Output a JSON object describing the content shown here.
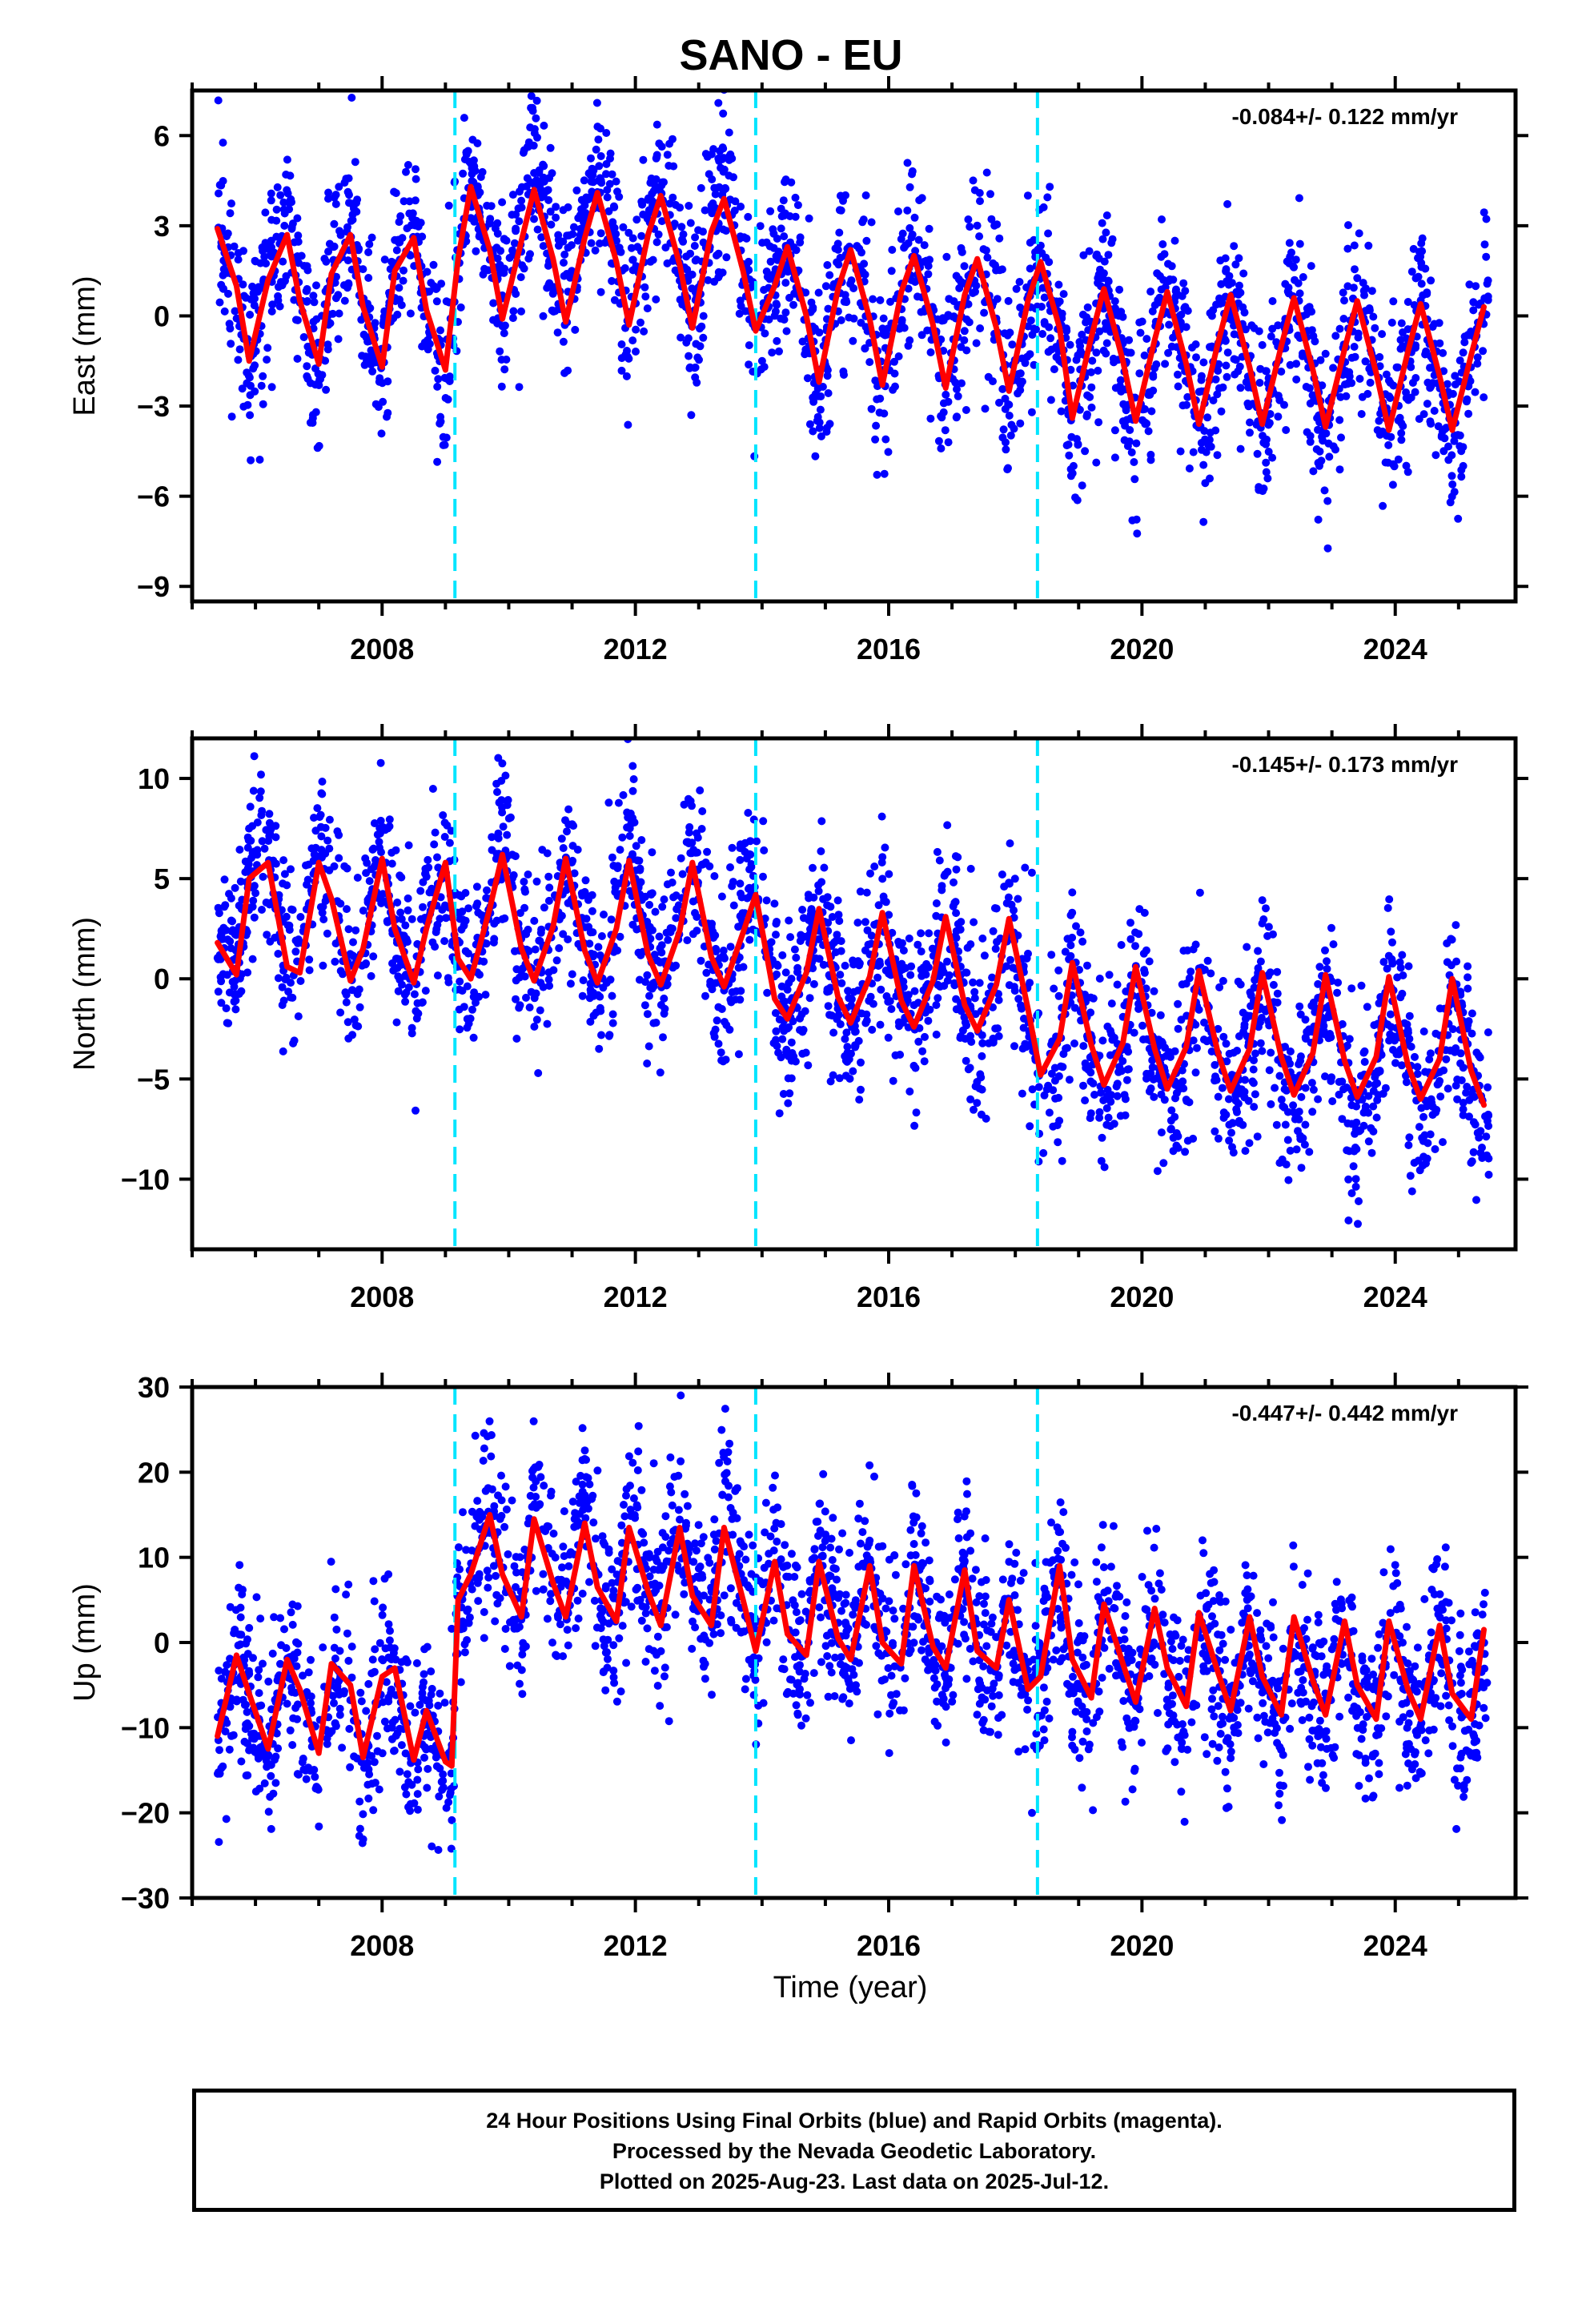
{
  "title": "SANO - EU",
  "xlabel": "Time (year)",
  "footer": {
    "line1": "24 Hour Positions Using Final Orbits (blue) and Rapid Orbits (magenta).",
    "line2": "Processed by the Nevada Geodetic Laboratory.",
    "line3": "Plotted on 2025-Aug-23. Last data on 2025-Jul-12."
  },
  "colors": {
    "data": "#0000ff",
    "model": "#ff0000",
    "offsets": "#00e5ff",
    "frame": "#000000"
  },
  "chart_data": [
    {
      "type": "scatter",
      "component": "East",
      "ylabel": "East (mm)",
      "rate_label": "-0.084+/- 0.122 mm/yr",
      "xlim": [
        2005.0,
        2025.9
      ],
      "ylim": [
        -9.5,
        7.5
      ],
      "yticks": [
        -9,
        -6,
        -3,
        0,
        3,
        6
      ],
      "ytick_labels": [
        "−9",
        "−6",
        "−3",
        "0",
        "3",
        "6"
      ],
      "xticks": [
        2008,
        2012,
        2016,
        2020,
        2024
      ],
      "xtick_labels": [
        "2008",
        "2012",
        "2016",
        "2020",
        "2024"
      ],
      "equipment_changes": [
        2009.15,
        2013.9,
        2018.35
      ],
      "series": [
        {
          "role": "model",
          "x": [
            2005.4,
            2005.7,
            2005.9,
            2006.2,
            2006.5,
            2006.7,
            2007.0,
            2007.2,
            2007.5,
            2007.7,
            2008.0,
            2008.2,
            2008.5,
            2008.7,
            2009.0,
            2009.2,
            2009.4,
            2009.7,
            2009.9,
            2010.2,
            2010.4,
            2010.7,
            2010.9,
            2011.2,
            2011.4,
            2011.7,
            2011.9,
            2012.2,
            2012.4,
            2012.7,
            2012.9,
            2013.2,
            2013.4,
            2013.7,
            2013.9,
            2014.2,
            2014.4,
            2014.7,
            2014.9,
            2015.2,
            2015.4,
            2015.7,
            2015.9,
            2016.2,
            2016.4,
            2016.7,
            2016.9,
            2017.2,
            2017.4,
            2017.7,
            2017.9,
            2018.2,
            2018.4,
            2018.7,
            2018.9,
            2019.2,
            2019.4,
            2019.7,
            2019.9,
            2020.2,
            2020.4,
            2020.7,
            2020.9,
            2021.2,
            2021.4,
            2021.7,
            2021.9,
            2022.2,
            2022.4,
            2022.7,
            2022.9,
            2023.2,
            2023.4,
            2023.7,
            2023.9,
            2024.2,
            2024.4,
            2024.7,
            2024.9,
            2025.2,
            2025.4
          ],
          "y": [
            2.9,
            1.0,
            -1.5,
            1.2,
            2.7,
            0.5,
            -1.6,
            1.4,
            2.7,
            0.3,
            -1.7,
            1.5,
            2.6,
            0.2,
            -1.8,
            1.9,
            4.3,
            2.2,
            -0.1,
            2.5,
            4.2,
            1.9,
            -0.2,
            2.6,
            4.1,
            1.8,
            -0.3,
            2.7,
            4.0,
            1.7,
            -0.4,
            2.8,
            3.9,
            1.5,
            -0.5,
            1.0,
            2.3,
            0.0,
            -2.2,
            0.9,
            2.2,
            -0.1,
            -2.3,
            0.8,
            2.0,
            -0.3,
            -2.4,
            0.7,
            1.9,
            -0.4,
            -2.5,
            0.5,
            1.8,
            -0.4,
            -3.4,
            -0.7,
            0.9,
            -1.5,
            -3.5,
            -0.8,
            0.8,
            -1.6,
            -3.6,
            -0.9,
            0.7,
            -1.7,
            -3.6,
            -1.0,
            0.6,
            -1.8,
            -3.7,
            -1.1,
            0.5,
            -1.9,
            -3.8,
            -1.2,
            0.4,
            -2.0,
            -3.8,
            -1.3,
            0.3
          ]
        }
      ]
    },
    {
      "type": "scatter",
      "component": "North",
      "ylabel": "North (mm)",
      "rate_label": "-0.145+/- 0.173 mm/yr",
      "xlim": [
        2005.0,
        2025.9
      ],
      "ylim": [
        -13.5,
        12.0
      ],
      "yticks": [
        -10,
        -5,
        0,
        5,
        10
      ],
      "ytick_labels": [
        "−10",
        "−5",
        "0",
        "5",
        "10"
      ],
      "xticks": [
        2008,
        2012,
        2016,
        2020,
        2024
      ],
      "xtick_labels": [
        "2008",
        "2012",
        "2016",
        "2020",
        "2024"
      ],
      "equipment_changes": [
        2009.15,
        2013.9,
        2018.35
      ],
      "series": [
        {
          "role": "model",
          "x": [
            2005.4,
            2005.7,
            2005.9,
            2006.2,
            2006.5,
            2006.7,
            2007.0,
            2007.2,
            2007.5,
            2007.7,
            2008.0,
            2008.2,
            2008.5,
            2008.7,
            2009.0,
            2009.2,
            2009.4,
            2009.7,
            2009.9,
            2010.2,
            2010.4,
            2010.7,
            2010.9,
            2011.2,
            2011.4,
            2011.7,
            2011.9,
            2012.2,
            2012.4,
            2012.7,
            2012.9,
            2013.2,
            2013.4,
            2013.7,
            2013.9,
            2014.2,
            2014.4,
            2014.7,
            2014.9,
            2015.2,
            2015.4,
            2015.7,
            2015.9,
            2016.2,
            2016.4,
            2016.7,
            2016.9,
            2017.2,
            2017.4,
            2017.7,
            2017.9,
            2018.2,
            2018.4,
            2018.7,
            2018.9,
            2019.2,
            2019.4,
            2019.7,
            2019.9,
            2020.2,
            2020.4,
            2020.7,
            2020.9,
            2021.2,
            2021.4,
            2021.7,
            2021.9,
            2022.2,
            2022.4,
            2022.7,
            2022.9,
            2023.2,
            2023.4,
            2023.7,
            2023.9,
            2024.2,
            2024.4,
            2024.7,
            2024.9,
            2025.2,
            2025.4
          ],
          "y": [
            1.8,
            0.2,
            5.0,
            5.8,
            0.6,
            0.3,
            5.8,
            4.0,
            -0.1,
            1.5,
            6.0,
            2.5,
            -0.2,
            2.5,
            5.8,
            1.0,
            0.0,
            3.5,
            6.2,
            1.5,
            -0.1,
            2.6,
            6.0,
            1.4,
            -0.2,
            2.5,
            5.9,
            1.2,
            -0.3,
            2.4,
            5.8,
            1.1,
            -0.4,
            2.3,
            4.2,
            -1.0,
            -2.0,
            0.3,
            3.5,
            -0.9,
            -2.2,
            0.1,
            3.3,
            -1.1,
            -2.4,
            -0.1,
            3.1,
            -1.3,
            -2.6,
            -0.3,
            3.0,
            -1.5,
            -4.8,
            -3.0,
            0.8,
            -3.3,
            -5.3,
            -3.2,
            0.6,
            -3.5,
            -5.5,
            -3.4,
            0.4,
            -3.7,
            -5.6,
            -3.5,
            0.3,
            -3.9,
            -5.8,
            -3.7,
            0.2,
            -4.1,
            -5.9,
            -3.9,
            0.1,
            -4.3,
            -6.0,
            -4.0,
            0.0,
            -4.6,
            -6.3
          ]
        }
      ]
    },
    {
      "type": "scatter",
      "component": "Up",
      "ylabel": "Up (mm)",
      "rate_label": "-0.447+/- 0.442 mm/yr",
      "xlim": [
        2005.0,
        2025.9
      ],
      "ylim": [
        -30.0,
        30.0
      ],
      "yticks": [
        -30,
        -20,
        -10,
        0,
        10,
        20,
        30
      ],
      "ytick_labels": [
        "−30",
        "−20",
        "−10",
        "0",
        "10",
        "20",
        "30"
      ],
      "xticks": [
        2008,
        2012,
        2016,
        2020,
        2024
      ],
      "xtick_labels": [
        "2008",
        "2012",
        "2016",
        "2020",
        "2024"
      ],
      "equipment_changes": [
        2009.15,
        2013.9,
        2018.35
      ],
      "series": [
        {
          "role": "model",
          "x": [
            2005.4,
            2005.7,
            2005.9,
            2006.2,
            2006.5,
            2006.7,
            2007.0,
            2007.2,
            2007.5,
            2007.7,
            2008.0,
            2008.2,
            2008.5,
            2008.7,
            2009.0,
            2009.1,
            2009.2,
            2009.4,
            2009.7,
            2009.9,
            2010.2,
            2010.4,
            2010.7,
            2010.9,
            2011.2,
            2011.4,
            2011.7,
            2011.9,
            2012.2,
            2012.4,
            2012.7,
            2012.9,
            2013.2,
            2013.4,
            2013.7,
            2013.9,
            2014.2,
            2014.4,
            2014.7,
            2014.9,
            2015.2,
            2015.4,
            2015.7,
            2015.9,
            2016.2,
            2016.4,
            2016.7,
            2016.9,
            2017.2,
            2017.4,
            2017.7,
            2017.9,
            2018.2,
            2018.4,
            2018.7,
            2018.9,
            2019.2,
            2019.4,
            2019.7,
            2019.9,
            2020.2,
            2020.4,
            2020.7,
            2020.9,
            2021.2,
            2021.4,
            2021.7,
            2021.9,
            2022.2,
            2022.4,
            2022.7,
            2022.9,
            2023.2,
            2023.4,
            2023.7,
            2023.9,
            2024.2,
            2024.4,
            2024.7,
            2024.9,
            2025.2,
            2025.4
          ],
          "y": [
            -11.0,
            -1.5,
            -6.0,
            -12.5,
            -2.0,
            -5.5,
            -13.0,
            -2.5,
            -5.0,
            -13.5,
            -4.0,
            -3.0,
            -13.8,
            -8.0,
            -14.0,
            -14.5,
            5.0,
            8.0,
            15.0,
            8.0,
            3.0,
            14.5,
            7.0,
            3.0,
            14.0,
            6.5,
            2.5,
            13.5,
            6.0,
            2.0,
            13.5,
            5.5,
            2.0,
            13.5,
            5.0,
            -1.0,
            9.5,
            1.0,
            -1.5,
            9.5,
            0.5,
            -2.0,
            9.0,
            0.0,
            -2.5,
            9.0,
            -0.5,
            -3.0,
            8.5,
            -1.0,
            -3.0,
            5.0,
            -5.5,
            -4.0,
            9.0,
            -2.0,
            -6.5,
            4.5,
            -2.5,
            -7.0,
            4.0,
            -3.0,
            -7.5,
            3.5,
            -3.5,
            -8.0,
            3.0,
            -4.0,
            -8.5,
            3.0,
            -4.5,
            -8.5,
            2.5,
            -5.0,
            -9.0,
            2.5,
            -5.5,
            -9.0,
            2.0,
            -6.0,
            -9.0,
            1.5
          ]
        }
      ]
    }
  ]
}
